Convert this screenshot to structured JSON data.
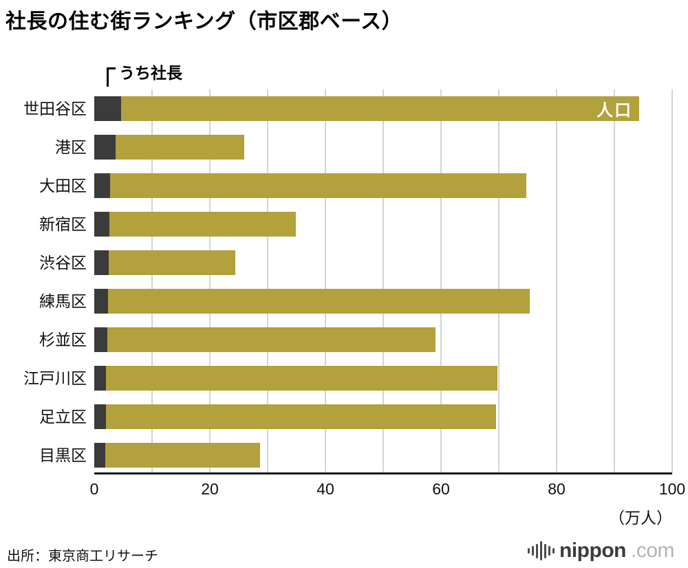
{
  "title": "社長の住む街ランキング（市区郡ベース）",
  "annotation": "うち社長",
  "bar_inner_label": "人口",
  "unit_label": "（万人）",
  "source": "出所：東京商工リサーチ",
  "logo": {
    "brand": "nippon",
    "tld": ".com"
  },
  "colors": {
    "population_bar": "#b2a13c",
    "president_segment": "#3b3b3b",
    "gridline": "#d4d4d4"
  },
  "chart_data": {
    "type": "bar",
    "orientation": "horizontal",
    "title": "社長の住む街ランキング（市区郡ベース）",
    "xlabel": "（万人）",
    "ylabel": "",
    "xlim": [
      0,
      100
    ],
    "xticks": [
      0,
      20,
      40,
      60,
      80,
      100
    ],
    "gridlines_every": 10,
    "grid": true,
    "legend_position": "none",
    "categories": [
      "世田谷区",
      "港区",
      "大田区",
      "新宿区",
      "渋谷区",
      "練馬区",
      "杉並区",
      "江戸川区",
      "足立区",
      "目黒区"
    ],
    "series": [
      {
        "name": "うち社長",
        "color": "#3b3b3b",
        "values": [
          4.7,
          3.7,
          2.7,
          2.6,
          2.5,
          2.4,
          2.3,
          2.0,
          2.0,
          1.9
        ]
      },
      {
        "name": "人口",
        "color": "#b2a13c",
        "values": [
          94.3,
          26.0,
          74.8,
          34.9,
          24.4,
          75.4,
          59.0,
          69.8,
          69.5,
          28.7
        ]
      }
    ]
  }
}
